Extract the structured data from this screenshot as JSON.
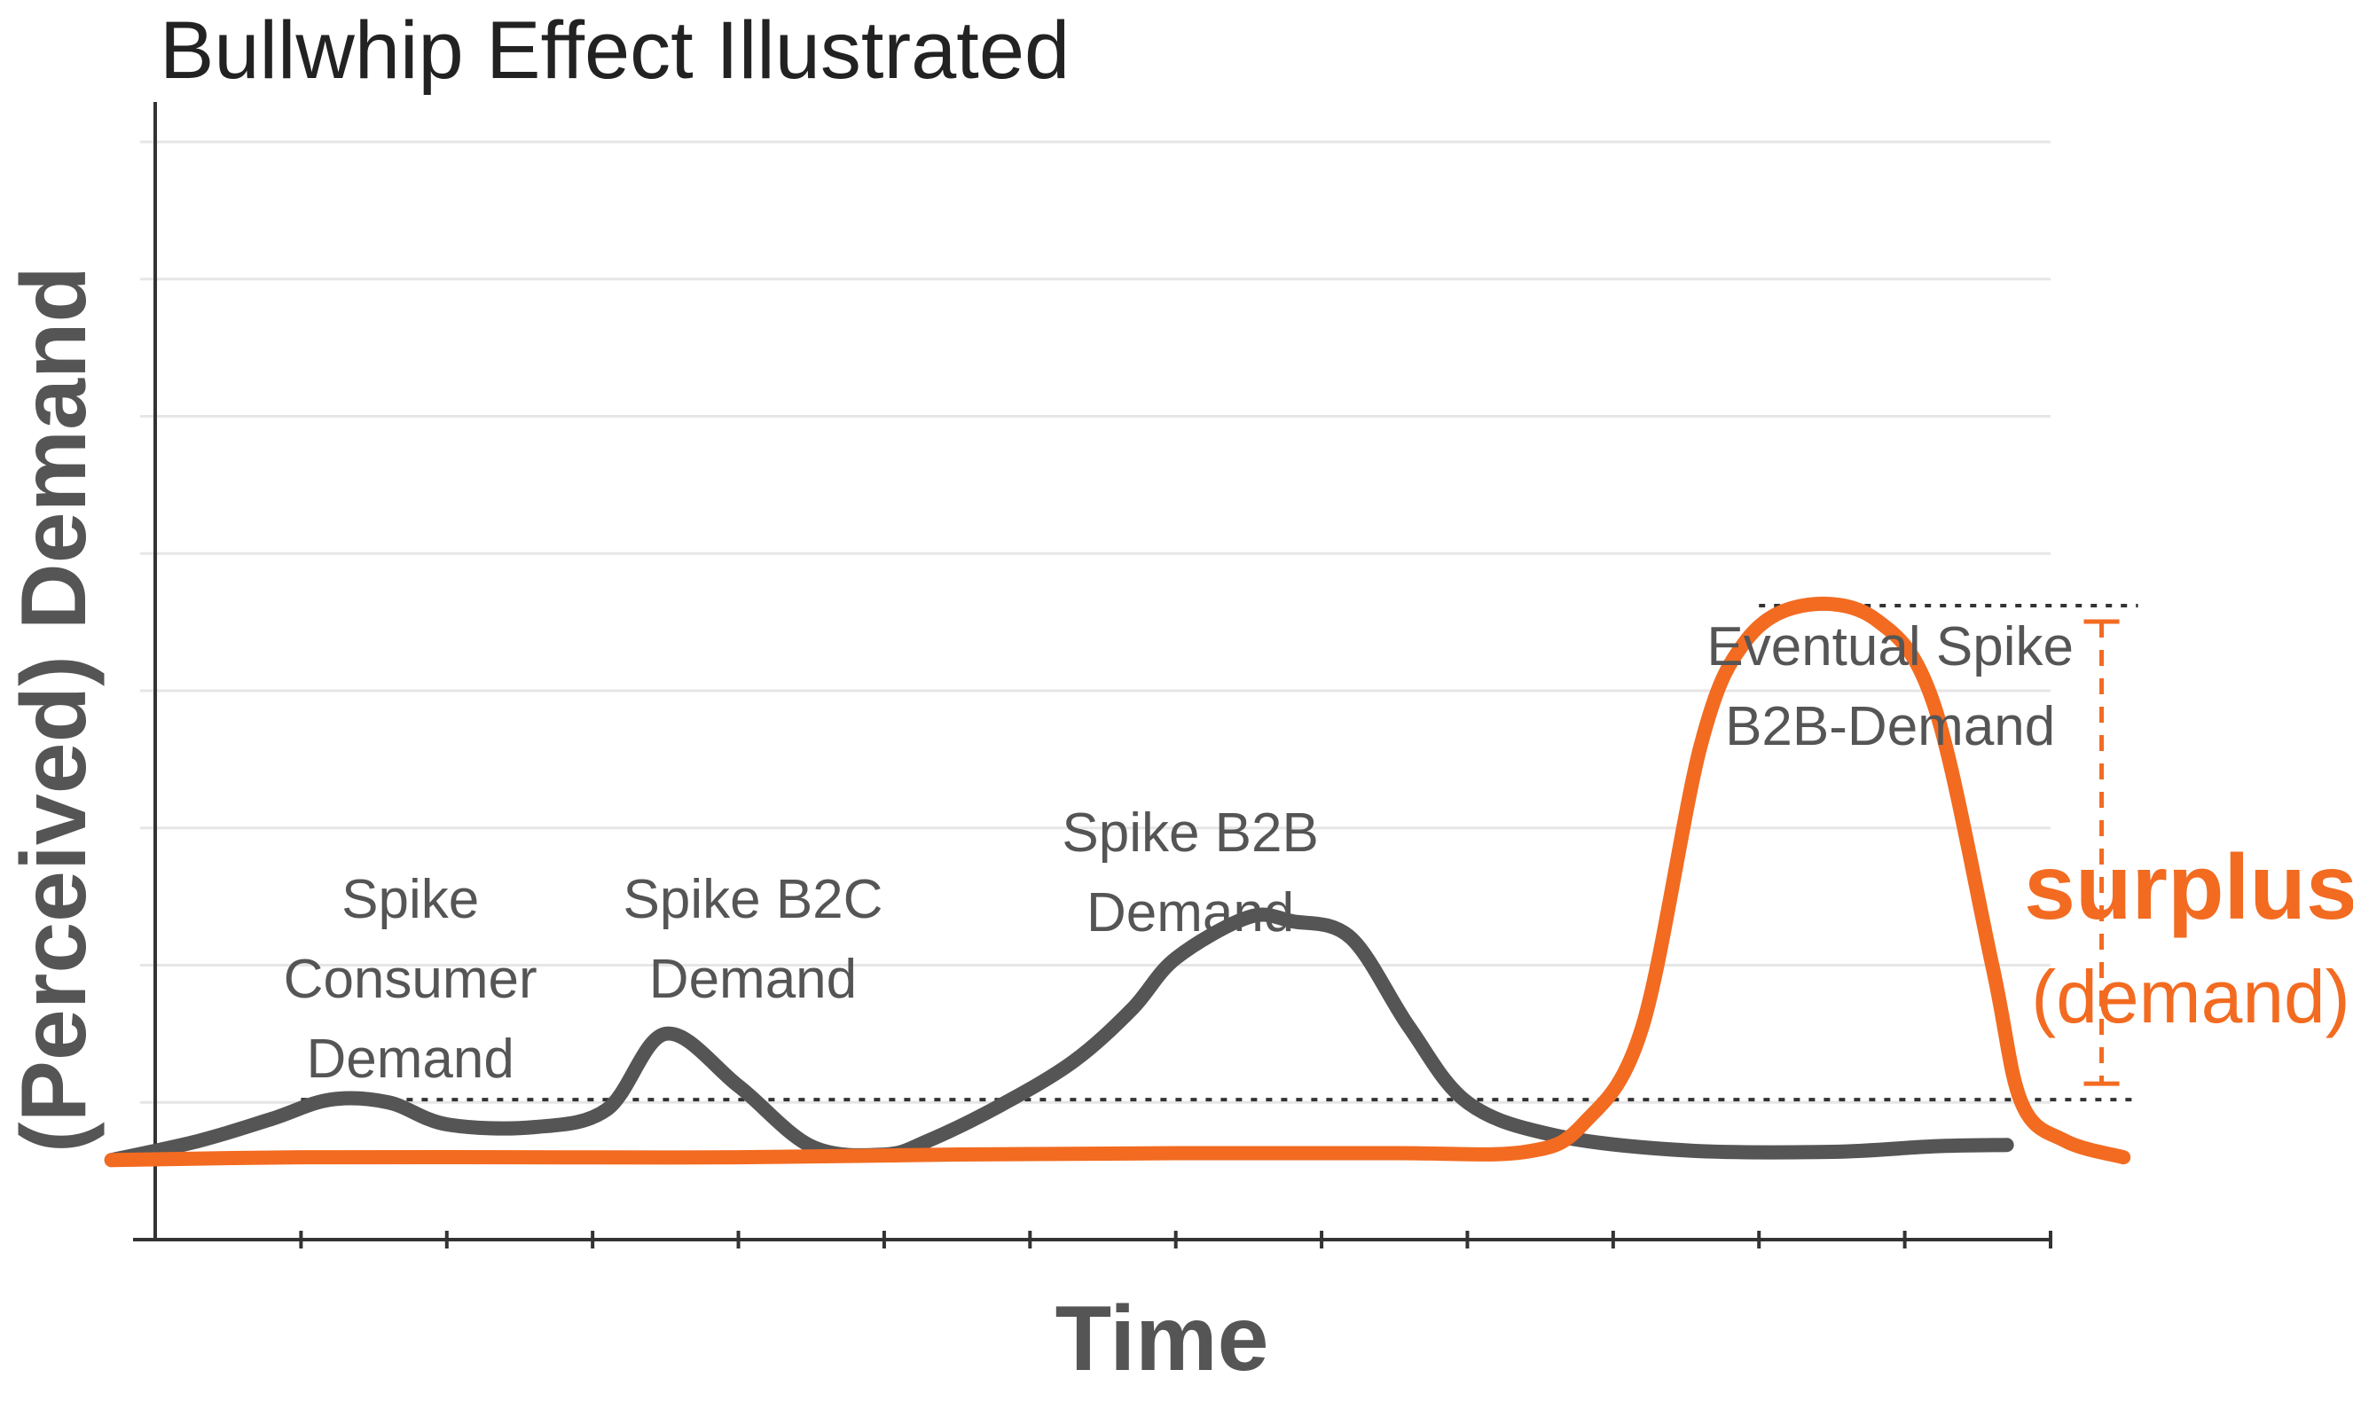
{
  "chart_data": {
    "type": "line",
    "title": "Bullwhip Effect Illustrated",
    "xlabel": "Time",
    "ylabel": "(Perceived) Demand",
    "xlim": [
      0,
      13
    ],
    "ylim": [
      0,
      8
    ],
    "x_ticks": [
      1,
      2,
      3,
      4,
      5,
      6,
      7,
      8,
      9,
      10,
      11,
      12,
      13
    ],
    "grid": true,
    "colors": {
      "gray": "#555555",
      "orange": "#f26b21",
      "grid": "#e6e6e6",
      "axis": "#333333"
    },
    "series": [
      {
        "color": "#555555",
        "x": [
          -0.3,
          0.3,
          0.8,
          1.2,
          1.6,
          2.0,
          2.6,
          3.1,
          3.5,
          4.0,
          4.5,
          5.0,
          5.3,
          5.8,
          6.3,
          6.7,
          7.0,
          7.5,
          7.8,
          8.2,
          8.6,
          9.0,
          9.6,
          10.5,
          11.5,
          12.2,
          12.7
        ],
        "y": [
          0.58,
          0.72,
          0.88,
          1.02,
          1.0,
          0.84,
          0.82,
          0.95,
          1.5,
          1.12,
          0.68,
          0.62,
          0.72,
          0.98,
          1.3,
          1.68,
          2.05,
          2.35,
          2.32,
          2.2,
          1.55,
          1.0,
          0.76,
          0.65,
          0.64,
          0.68,
          0.69
        ]
      },
      {
        "color": "#f26b21",
        "x": [
          -0.3,
          1.0,
          2.5,
          4.0,
          5.5,
          7.0,
          8.5,
          9.4,
          9.8,
          10.2,
          10.6,
          10.9,
          11.3,
          11.8,
          12.2,
          12.6,
          12.8,
          13.1,
          13.5
        ],
        "y": [
          0.58,
          0.6,
          0.6,
          0.6,
          0.62,
          0.63,
          0.63,
          0.64,
          0.85,
          1.55,
          3.6,
          4.35,
          4.62,
          4.52,
          3.9,
          2.0,
          1.0,
          0.72,
          0.6
        ]
      }
    ],
    "reference_lines": [
      {
        "y": 1.02,
        "x_from": 1.0,
        "x_to": 13.6,
        "style": "dotted"
      },
      {
        "y": 4.62,
        "x_from": 11.0,
        "x_to": 13.6,
        "style": "dotted"
      }
    ],
    "annotations": [
      {
        "lines": [
          "Spike",
          "Consumer",
          "Demand"
        ],
        "x": 1.75
      },
      {
        "lines": [
          "Spike B2C",
          "Demand"
        ],
        "x": 4.1
      },
      {
        "lines": [
          "Spike B2B",
          "Demand"
        ],
        "x": 7.1
      },
      {
        "lines": [
          "Eventual Spike",
          "B2B-Demand"
        ],
        "x": 11.9
      }
    ],
    "surplus": {
      "label": "surplus",
      "sublabel": "(demand)",
      "x": 13.35,
      "y_from": 1.02,
      "y_to": 4.62
    }
  }
}
